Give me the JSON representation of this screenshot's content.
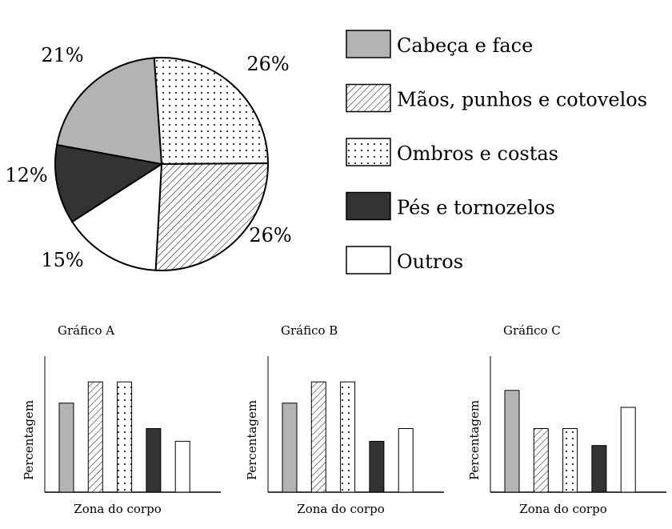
{
  "colors": {
    "gray": "#b3b3b3",
    "dark": "#333333",
    "white": "#ffffff",
    "line": "#000000"
  },
  "chart_data": [
    {
      "type": "pie",
      "title": "",
      "legend_position": "right",
      "slices": [
        {
          "label": "Ombros e costas",
          "value": 26,
          "value_label": "26%",
          "fill": "dots"
        },
        {
          "label": "Mãos, punhos e cotovelos",
          "value": 26,
          "value_label": "26%",
          "fill": "hatch"
        },
        {
          "label": "Outros",
          "value": 15,
          "value_label": "15%",
          "fill": "white"
        },
        {
          "label": "Pés e tornozelos",
          "value": 12,
          "value_label": "12%",
          "fill": "dark"
        },
        {
          "label": "Cabeça e face",
          "value": 21,
          "value_label": "21%",
          "fill": "gray"
        }
      ],
      "legend": [
        {
          "label": "Cabeça e face",
          "fill": "gray"
        },
        {
          "label": "Mãos, punhos e cotovelos",
          "fill": "hatch"
        },
        {
          "label": "Ombros e costas",
          "fill": "dots"
        },
        {
          "label": "Pés e tornozelos",
          "fill": "dark"
        },
        {
          "label": "Outros",
          "fill": "white"
        }
      ]
    },
    {
      "type": "bar",
      "title": "Gráfico A",
      "xlabel": "Zona do corpo",
      "ylabel": "Percentagem",
      "ylim": [
        0,
        32
      ],
      "categories": [
        "Cabeça e face",
        "Mãos, punhos e cotovelos",
        "Ombros e costas",
        "Pés e tornozelos",
        "Outros"
      ],
      "fills": [
        "gray",
        "hatch",
        "dots",
        "dark",
        "white"
      ],
      "values": [
        21,
        26,
        26,
        15,
        12
      ]
    },
    {
      "type": "bar",
      "title": "Gráfico B",
      "xlabel": "Zona do corpo",
      "ylabel": "Percentagem",
      "ylim": [
        0,
        32
      ],
      "categories": [
        "Cabeça e face",
        "Mãos, punhos e cotovelos",
        "Ombros e costas",
        "Pés e tornozelos",
        "Outros"
      ],
      "fills": [
        "gray",
        "hatch",
        "dots",
        "dark",
        "white"
      ],
      "values": [
        21,
        26,
        26,
        12,
        15
      ]
    },
    {
      "type": "bar",
      "title": "Gráfico C",
      "xlabel": "Zona do corpo",
      "ylabel": "Percentagem",
      "ylim": [
        0,
        32
      ],
      "categories": [
        "Cabeça e face",
        "Mãos, punhos e cotovelos",
        "Ombros e costas",
        "Pés e tornozelos",
        "Outros"
      ],
      "fills": [
        "gray",
        "hatch",
        "dots",
        "dark",
        "white"
      ],
      "values": [
        24,
        15,
        15,
        11,
        20
      ]
    }
  ]
}
